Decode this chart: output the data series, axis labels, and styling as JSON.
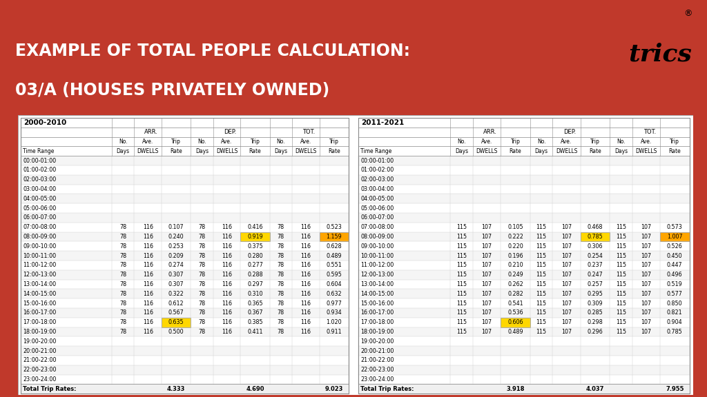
{
  "title_line1": "EXAMPLE OF TOTAL PEOPLE CALCULATION:",
  "title_line2": "03/A (HOUSES PRIVATELY OWNED)",
  "title_bg": "#3a3a3a",
  "title_color": "#ffffff",
  "orange_top": "#cc5500",
  "highlight_yellow": "#FFD700",
  "highlight_orange": "#FFA500",
  "period1": "2000-2010",
  "period2": "2011-2021",
  "time_ranges": [
    "00:00-01:00",
    "01:00-02:00",
    "02:00-03:00",
    "03:00-04:00",
    "04:00-05:00",
    "05:00-06:00",
    "06:00-07:00",
    "07:00-08:00",
    "08:00-09:00",
    "09:00-10:00",
    "10:00-11:00",
    "11:00-12:00",
    "12:00-13:00",
    "13:00-14:00",
    "14:00-15:00",
    "15:00-16:00",
    "16:00-17:00",
    "17:00-18:00",
    "18:00-19:00",
    "19:00-20:00",
    "20:00-21:00",
    "21:00-22:00",
    "22:00-23:00",
    "23:00-24:00"
  ],
  "p1_arr_days": [
    null,
    null,
    null,
    null,
    null,
    null,
    null,
    78,
    78,
    78,
    78,
    78,
    78,
    78,
    78,
    78,
    78,
    78,
    78,
    null,
    null,
    null,
    null,
    null
  ],
  "p1_arr_dwells": [
    null,
    null,
    null,
    null,
    null,
    null,
    null,
    116,
    116,
    116,
    116,
    116,
    116,
    116,
    116,
    116,
    116,
    116,
    116,
    null,
    null,
    null,
    null,
    null
  ],
  "p1_arr_rate": [
    null,
    null,
    null,
    null,
    null,
    null,
    null,
    0.107,
    0.24,
    0.253,
    0.209,
    0.274,
    0.307,
    0.307,
    0.322,
    0.612,
    0.567,
    0.635,
    0.5,
    null,
    null,
    null,
    null,
    null
  ],
  "p1_dep_days": [
    null,
    null,
    null,
    null,
    null,
    null,
    null,
    78,
    78,
    78,
    78,
    78,
    78,
    78,
    78,
    78,
    78,
    78,
    78,
    null,
    null,
    null,
    null,
    null
  ],
  "p1_dep_dwells": [
    null,
    null,
    null,
    null,
    null,
    null,
    null,
    116,
    116,
    116,
    116,
    116,
    116,
    116,
    116,
    116,
    116,
    116,
    116,
    null,
    null,
    null,
    null,
    null
  ],
  "p1_dep_rate": [
    null,
    null,
    null,
    null,
    null,
    null,
    null,
    0.416,
    0.919,
    0.375,
    0.28,
    0.277,
    0.288,
    0.297,
    0.31,
    0.365,
    0.367,
    0.385,
    0.411,
    null,
    null,
    null,
    null,
    null
  ],
  "p1_tot_days": [
    null,
    null,
    null,
    null,
    null,
    null,
    null,
    78,
    78,
    78,
    78,
    78,
    78,
    78,
    78,
    78,
    78,
    78,
    78,
    null,
    null,
    null,
    null,
    null
  ],
  "p1_tot_dwells": [
    null,
    null,
    null,
    null,
    null,
    null,
    null,
    116,
    116,
    116,
    116,
    116,
    116,
    116,
    116,
    116,
    116,
    116,
    116,
    null,
    null,
    null,
    null,
    null
  ],
  "p1_tot_rate": [
    null,
    null,
    null,
    null,
    null,
    null,
    null,
    0.523,
    1.159,
    0.628,
    0.489,
    0.551,
    0.595,
    0.604,
    0.632,
    0.977,
    0.934,
    1.02,
    0.911,
    null,
    null,
    null,
    null,
    null
  ],
  "p2_arr_days": [
    null,
    null,
    null,
    null,
    null,
    null,
    null,
    115,
    115,
    115,
    115,
    115,
    115,
    115,
    115,
    115,
    115,
    115,
    115,
    null,
    null,
    null,
    null,
    null
  ],
  "p2_arr_dwells": [
    null,
    null,
    null,
    null,
    null,
    null,
    null,
    107,
    107,
    107,
    107,
    107,
    107,
    107,
    107,
    107,
    107,
    107,
    107,
    null,
    null,
    null,
    null,
    null
  ],
  "p2_arr_rate": [
    null,
    null,
    null,
    null,
    null,
    null,
    null,
    0.105,
    0.222,
    0.22,
    0.196,
    0.21,
    0.249,
    0.262,
    0.282,
    0.541,
    0.536,
    0.606,
    0.489,
    null,
    null,
    null,
    null,
    null
  ],
  "p2_dep_days": [
    null,
    null,
    null,
    null,
    null,
    null,
    null,
    115,
    115,
    115,
    115,
    115,
    115,
    115,
    115,
    115,
    115,
    115,
    115,
    null,
    null,
    null,
    null,
    null
  ],
  "p2_dep_dwells": [
    null,
    null,
    null,
    null,
    null,
    null,
    null,
    107,
    107,
    107,
    107,
    107,
    107,
    107,
    107,
    107,
    107,
    107,
    107,
    null,
    null,
    null,
    null,
    null
  ],
  "p2_dep_rate": [
    null,
    null,
    null,
    null,
    null,
    null,
    null,
    0.468,
    0.785,
    0.306,
    0.254,
    0.237,
    0.247,
    0.257,
    0.295,
    0.309,
    0.285,
    0.298,
    0.296,
    null,
    null,
    null,
    null,
    null
  ],
  "p2_tot_days": [
    null,
    null,
    null,
    null,
    null,
    null,
    null,
    115,
    115,
    115,
    115,
    115,
    115,
    115,
    115,
    115,
    115,
    115,
    115,
    null,
    null,
    null,
    null,
    null
  ],
  "p2_tot_dwells": [
    null,
    null,
    null,
    null,
    null,
    null,
    null,
    107,
    107,
    107,
    107,
    107,
    107,
    107,
    107,
    107,
    107,
    107,
    107,
    null,
    null,
    null,
    null,
    null
  ],
  "p2_tot_rate": [
    null,
    null,
    null,
    null,
    null,
    null,
    null,
    0.573,
    1.007,
    0.526,
    0.45,
    0.447,
    0.496,
    0.519,
    0.577,
    0.85,
    0.821,
    0.904,
    0.785,
    null,
    null,
    null,
    null,
    null
  ],
  "p1_total_arr": "4.333",
  "p1_total_dep": "4.690",
  "p1_total_tot": "9.023",
  "p2_total_arr": "3.918",
  "p2_total_dep": "4.037",
  "p2_total_tot": "7.955",
  "p1_highlight_dep_row": 8,
  "p1_highlight_arr_row": 17,
  "p2_highlight_dep_row": 8,
  "p2_highlight_arr_row": 17
}
